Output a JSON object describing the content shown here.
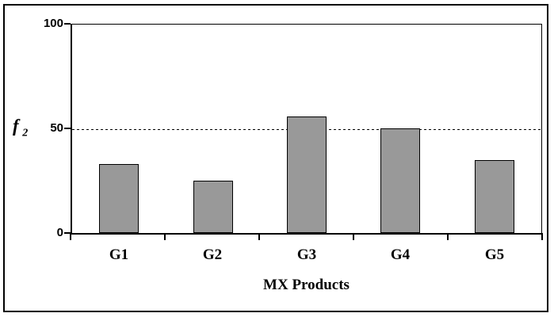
{
  "chart_data": {
    "type": "bar",
    "categories": [
      "G1",
      "G2",
      "G3",
      "G4",
      "G5"
    ],
    "values": [
      33,
      25,
      56,
      50,
      35
    ],
    "title": "",
    "xlabel": "MX Products",
    "ylabel": "f",
    "ylabel_subscript": "2",
    "ylim": [
      0,
      100
    ],
    "yticks": [
      0,
      50,
      100
    ],
    "gridline": {
      "value": 50,
      "style": "dashed",
      "color": "#000000"
    },
    "legend": "none",
    "bar_color": "#999999",
    "bar_border_color": "#000000",
    "frame_color": "#000000",
    "background_color": "#ffffff"
  }
}
